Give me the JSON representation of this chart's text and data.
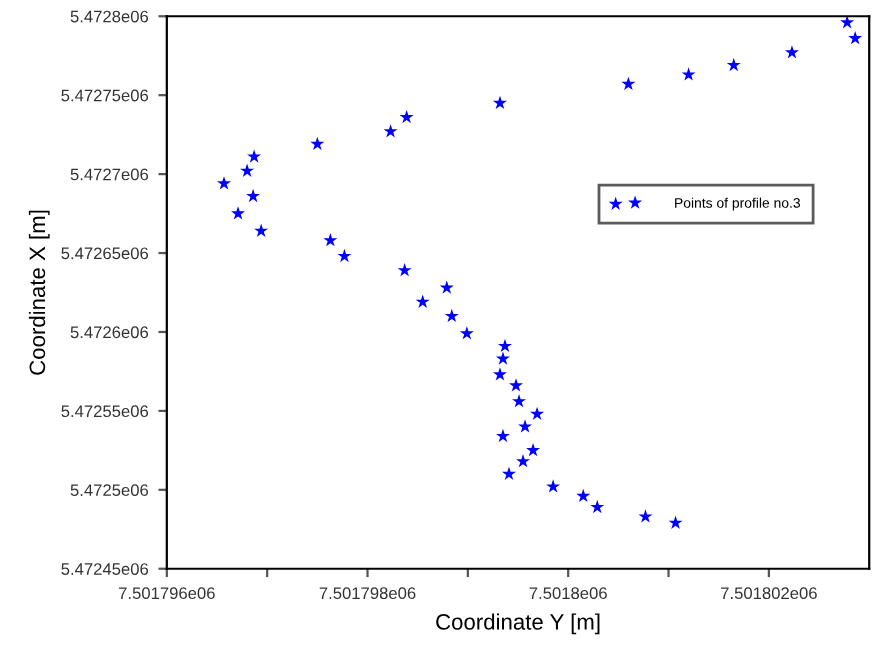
{
  "chart_data": {
    "type": "scatter",
    "xlabel": "Coordinate Y [m]",
    "ylabel": "Coordinate X [m]",
    "series": [
      {
        "name": "Points of profile no.3",
        "color": "#0000ff",
        "marker": "star",
        "x": [
          7501796.57,
          7501796.8,
          7501796.87,
          7501796.86,
          7501796.71,
          7501796.94,
          7501797.5,
          7501798.23,
          7501798.39,
          7501797.63,
          7501797.77,
          7501798.37,
          7501798.55,
          7501799.32,
          7501800.6,
          7501801.2,
          7501801.65,
          7501802.23,
          7501802.78,
          7501802.86,
          7501798.79,
          7501798.84,
          7501798.99,
          7501799.37,
          7501799.35,
          7501799.32,
          7501799.48,
          7501799.51,
          7501799.69,
          7501799.57,
          7501799.35,
          7501799.65,
          7501799.55,
          7501799.41,
          7501799.85,
          7501800.15,
          7501800.29,
          7501800.77,
          7501801.07
        ],
        "values": [
          5472694,
          5472702,
          5472711,
          5472686,
          5472675,
          5472664,
          5472719,
          5472727,
          5472736,
          5472658,
          5472648,
          5472639,
          5472619,
          5472745,
          5472757,
          5472763,
          5472769,
          5472777,
          5472796,
          5472786,
          5472628,
          5472610,
          5472599,
          5472591,
          5472583,
          5472573,
          5472566,
          5472556,
          5472548,
          5472540,
          5472534,
          5472525,
          5472518,
          5472510,
          5472502,
          5472496,
          5472489,
          5472483,
          5472479
        ]
      }
    ],
    "xlim": [
      7501796,
      7501803
    ],
    "xticks": [
      {
        "value": 7501796,
        "label": "7.501796e06"
      },
      {
        "value": 7501797,
        "label": null
      },
      {
        "value": 7501798,
        "label": "7.501798e06"
      },
      {
        "value": 7501799,
        "label": null
      },
      {
        "value": 7501800,
        "label": "7.5018e06"
      },
      {
        "value": 7501801,
        "label": null
      },
      {
        "value": 7501802,
        "label": "7.501802e06"
      }
    ],
    "ylim": [
      5472450,
      5472800
    ],
    "yticks": [
      {
        "value": 5472450,
        "label": "5.47245e06"
      },
      {
        "value": 5472500,
        "label": "5.4725e06"
      },
      {
        "value": 5472550,
        "label": "5.47255e06"
      },
      {
        "value": 5472600,
        "label": "5.4726e06"
      },
      {
        "value": 5472650,
        "label": "5.47265e06"
      },
      {
        "value": 5472700,
        "label": "5.4727e06"
      },
      {
        "value": 5472750,
        "label": "5.47275e06"
      },
      {
        "value": 5472800,
        "label": "5.4728e06"
      }
    ],
    "legend": "right",
    "grid": false
  }
}
